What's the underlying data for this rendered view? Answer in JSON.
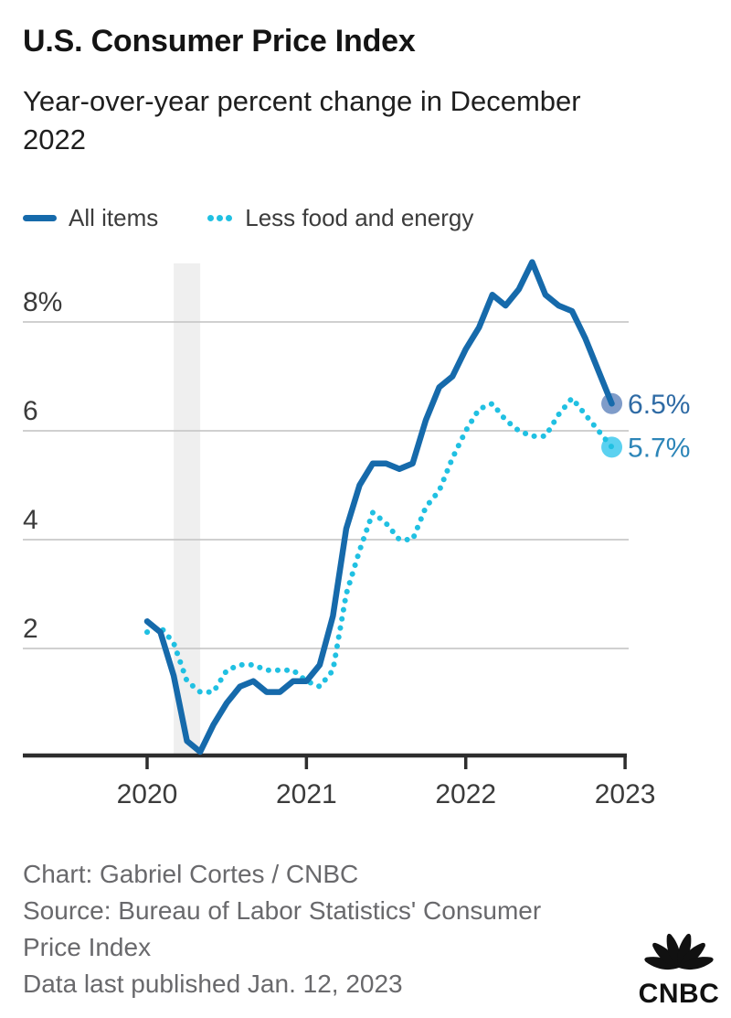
{
  "header": {
    "title": "U.S. Consumer Price Index",
    "subtitle_lines": [
      "Year-over-year percent change in December",
      "2022"
    ]
  },
  "legend": {
    "items": [
      {
        "label": "All items",
        "style": "solid",
        "color": "#166aab"
      },
      {
        "label": "Less food and energy",
        "style": "dotted",
        "color": "#20c0e2"
      }
    ]
  },
  "chart_data": {
    "type": "line",
    "title": "U.S. Consumer Price Index",
    "subtitle": "Year-over-year percent change in December 2022",
    "x_unit": "month",
    "x_start": "2020-01",
    "x_end": "2022-12",
    "x_tick_labels": [
      "2020",
      "2021",
      "2022",
      "2023"
    ],
    "y_ticks": [
      8,
      6,
      4,
      2
    ],
    "y_tick_labels": [
      "8%",
      "6",
      "4",
      "2"
    ],
    "ylim": [
      0,
      9.3
    ],
    "grid": true,
    "legend_position": "top-left",
    "recession_band": {
      "from": "2020-03",
      "to": "2020-04"
    },
    "series": [
      {
        "name": "All items",
        "style": "solid",
        "color": "#166aab",
        "end_dot_color": "#7f9cc9",
        "end_label": "6.5%",
        "end_label_color": "#2f6ba5",
        "values": [
          2.5,
          2.3,
          1.5,
          0.3,
          0.1,
          0.6,
          1.0,
          1.3,
          1.4,
          1.2,
          1.2,
          1.4,
          1.4,
          1.7,
          2.6,
          4.2,
          5.0,
          5.4,
          5.4,
          5.3,
          5.4,
          6.2,
          6.8,
          7.0,
          7.5,
          7.9,
          8.5,
          8.3,
          8.6,
          9.1,
          8.5,
          8.3,
          8.2,
          7.7,
          7.1,
          6.5
        ]
      },
      {
        "name": "Less food and energy",
        "style": "dotted",
        "color": "#20c0e2",
        "end_dot_color": "#5bd1f0",
        "end_label": "5.7%",
        "end_label_color": "#2c85b8",
        "values": [
          2.3,
          2.4,
          2.1,
          1.4,
          1.2,
          1.2,
          1.6,
          1.7,
          1.7,
          1.6,
          1.6,
          1.6,
          1.4,
          1.3,
          1.6,
          3.0,
          3.8,
          4.5,
          4.3,
          4.0,
          4.0,
          4.6,
          4.9,
          5.5,
          6.0,
          6.4,
          6.5,
          6.2,
          6.0,
          5.9,
          5.9,
          6.3,
          6.6,
          6.3,
          6.0,
          5.7
        ]
      }
    ]
  },
  "footer": {
    "lines": [
      "Chart: Gabriel Cortes / CNBC",
      "Source: Bureau of Labor Statistics' Consumer",
      "Price Index",
      "Data last published Jan. 12, 2023"
    ],
    "logo_text": "CNBC"
  }
}
